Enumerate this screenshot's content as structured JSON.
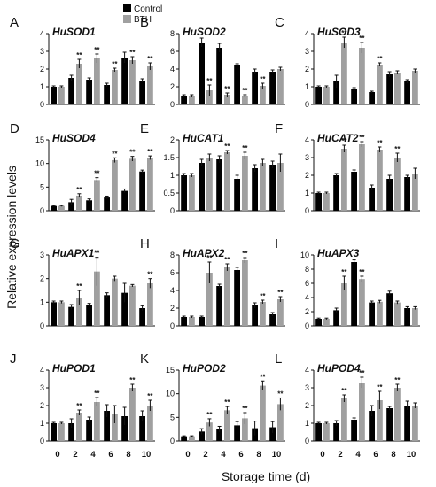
{
  "figure": {
    "ylabel": "Relative expression levels",
    "xlabel": "Storage time (d)",
    "legend": {
      "placement": "top",
      "entries": [
        {
          "name": "Control",
          "color": "#000000"
        },
        {
          "name": "BTH",
          "color": "#a0a0a0"
        }
      ]
    },
    "colors": {
      "control": "#000000",
      "bth": "#a0a0a0"
    }
  },
  "chart_data": [
    {
      "type": "bar",
      "panel": "A",
      "gene": "HuSOD1",
      "categories": [
        "0",
        "2",
        "4",
        "6",
        "8",
        "10"
      ],
      "yticks": [
        0,
        1,
        2,
        3,
        4
      ],
      "ylim": [
        0,
        4
      ],
      "series": [
        {
          "name": "Control",
          "values": [
            1.0,
            1.5,
            1.4,
            1.1,
            2.65,
            1.35
          ],
          "errors": [
            0.05,
            0.15,
            0.1,
            0.1,
            0.3,
            0.1
          ]
        },
        {
          "name": "BTH",
          "values": [
            1.0,
            2.3,
            2.6,
            1.95,
            2.5,
            2.15
          ],
          "errors": [
            0.05,
            0.25,
            0.25,
            0.1,
            0.2,
            0.2
          ]
        }
      ],
      "significance": [
        "",
        "**",
        "**",
        "**",
        "**",
        "**"
      ]
    },
    {
      "type": "bar",
      "panel": "B",
      "gene": "HuSOD2",
      "categories": [
        "0",
        "2",
        "4",
        "6",
        "8",
        "10"
      ],
      "yticks": [
        0,
        2,
        4,
        6,
        8
      ],
      "ylim": [
        0,
        8
      ],
      "series": [
        {
          "name": "Control",
          "values": [
            1.0,
            7.0,
            6.4,
            4.5,
            3.7,
            3.7
          ],
          "errors": [
            0.1,
            0.5,
            0.5,
            0.1,
            0.3,
            0.2
          ]
        },
        {
          "name": "BTH",
          "values": [
            1.0,
            1.6,
            1.1,
            1.0,
            2.1,
            4.0
          ],
          "errors": [
            0.1,
            0.6,
            0.2,
            0.1,
            0.3,
            0.2
          ]
        }
      ],
      "significance": [
        "",
        "**",
        "**",
        "**",
        "**",
        ""
      ]
    },
    {
      "type": "bar",
      "panel": "C",
      "gene": "HuSOD3",
      "categories": [
        "0",
        "2",
        "4",
        "6",
        "8",
        "10"
      ],
      "yticks": [
        0,
        1,
        2,
        3,
        4
      ],
      "ylim": [
        0,
        4
      ],
      "series": [
        {
          "name": "Control",
          "values": [
            1.0,
            1.3,
            0.85,
            0.7,
            1.7,
            1.3
          ],
          "errors": [
            0.05,
            0.35,
            0.1,
            0.05,
            0.15,
            0.1
          ]
        },
        {
          "name": "BTH",
          "values": [
            1.0,
            3.5,
            3.2,
            2.25,
            1.8,
            1.9
          ],
          "errors": [
            0.05,
            0.3,
            0.3,
            0.1,
            0.1,
            0.1
          ]
        }
      ],
      "significance": [
        "",
        "**",
        "**",
        "**",
        "",
        ""
      ]
    },
    {
      "type": "bar",
      "panel": "D",
      "gene": "HuSOD4",
      "categories": [
        "0",
        "2",
        "4",
        "6",
        "8",
        "10"
      ],
      "yticks": [
        0,
        5,
        10,
        15
      ],
      "ylim": [
        0,
        15
      ],
      "series": [
        {
          "name": "Control",
          "values": [
            1.0,
            1.8,
            2.2,
            2.8,
            4.2,
            8.3
          ],
          "errors": [
            0.1,
            0.6,
            0.3,
            0.3,
            0.4,
            0.3
          ]
        },
        {
          "name": "BTH",
          "values": [
            1.0,
            3.2,
            6.5,
            10.7,
            11.0,
            11.2
          ],
          "errors": [
            0.1,
            0.4,
            0.5,
            0.5,
            0.5,
            0.4
          ]
        }
      ],
      "significance": [
        "",
        "**",
        "**",
        "**",
        "**",
        "**"
      ]
    },
    {
      "type": "bar",
      "panel": "E",
      "gene": "HuCAT1",
      "categories": [
        "0",
        "2",
        "4",
        "6",
        "8",
        "10"
      ],
      "yticks": [
        0.0,
        0.5,
        1.0,
        1.5,
        2.0
      ],
      "ylim": [
        0,
        2
      ],
      "series": [
        {
          "name": "Control",
          "values": [
            1.0,
            1.35,
            1.45,
            0.9,
            1.2,
            1.3
          ],
          "errors": [
            0.05,
            0.1,
            0.1,
            0.1,
            0.1,
            0.1
          ]
        },
        {
          "name": "BTH",
          "values": [
            1.0,
            1.5,
            1.65,
            1.55,
            1.35,
            1.35
          ],
          "errors": [
            0.05,
            0.1,
            0.05,
            0.1,
            0.1,
            0.25
          ]
        }
      ],
      "significance": [
        "",
        "",
        "**",
        "**",
        "",
        ""
      ]
    },
    {
      "type": "bar",
      "panel": "F",
      "gene": "HuCAT2",
      "categories": [
        "0",
        "2",
        "4",
        "6",
        "8",
        "10"
      ],
      "yticks": [
        0,
        1,
        2,
        3,
        4
      ],
      "ylim": [
        0,
        4
      ],
      "series": [
        {
          "name": "Control",
          "values": [
            1.0,
            2.0,
            2.2,
            1.3,
            1.8,
            1.9
          ],
          "errors": [
            0.05,
            0.1,
            0.1,
            0.15,
            0.2,
            0.1
          ]
        },
        {
          "name": "BTH",
          "values": [
            1.0,
            3.5,
            3.75,
            3.45,
            3.0,
            2.1
          ],
          "errors": [
            0.05,
            0.2,
            0.15,
            0.15,
            0.25,
            0.3
          ]
        }
      ],
      "significance": [
        "",
        "**",
        "**",
        "**",
        "**",
        ""
      ]
    },
    {
      "type": "bar",
      "panel": "G",
      "gene": "HuAPX1",
      "categories": [
        "0",
        "2",
        "4",
        "6",
        "8",
        "10"
      ],
      "yticks": [
        0,
        1,
        2,
        3
      ],
      "ylim": [
        0,
        3
      ],
      "series": [
        {
          "name": "Control",
          "values": [
            1.0,
            0.8,
            0.9,
            1.3,
            1.4,
            0.75
          ],
          "errors": [
            0.05,
            0.1,
            0.05,
            0.1,
            0.4,
            0.1
          ]
        },
        {
          "name": "BTH",
          "values": [
            1.0,
            1.2,
            2.3,
            2.0,
            1.7,
            1.8
          ],
          "errors": [
            0.05,
            0.3,
            0.6,
            0.1,
            0.05,
            0.2
          ]
        }
      ],
      "significance": [
        "",
        "**",
        "**",
        "",
        "",
        "**"
      ]
    },
    {
      "type": "bar",
      "panel": "H",
      "gene": "HuAPX2",
      "categories": [
        "0",
        "2",
        "4",
        "6",
        "8",
        "10"
      ],
      "yticks": [
        0,
        2,
        4,
        6,
        8
      ],
      "ylim": [
        0,
        8
      ],
      "series": [
        {
          "name": "Control",
          "values": [
            1.0,
            1.0,
            4.5,
            6.3,
            2.3,
            1.3
          ],
          "errors": [
            0.1,
            0.1,
            0.2,
            0.3,
            0.3,
            0.2
          ]
        },
        {
          "name": "BTH",
          "values": [
            1.0,
            6.0,
            6.6,
            7.4,
            2.7,
            3.0
          ],
          "errors": [
            0.1,
            1.2,
            0.4,
            0.3,
            0.2,
            0.3
          ]
        }
      ],
      "significance": [
        "",
        "**",
        "**",
        "**",
        "**",
        "**"
      ]
    },
    {
      "type": "bar",
      "panel": "I",
      "gene": "HuAPX3",
      "categories": [
        "0",
        "2",
        "4",
        "6",
        "8",
        "10"
      ],
      "yticks": [
        0,
        2,
        4,
        6,
        8,
        10
      ],
      "ylim": [
        0,
        10
      ],
      "series": [
        {
          "name": "Control",
          "values": [
            1.0,
            2.2,
            9.0,
            3.3,
            4.6,
            2.5
          ],
          "errors": [
            0.1,
            0.3,
            0.3,
            0.2,
            0.3,
            0.2
          ]
        },
        {
          "name": "BTH",
          "values": [
            1.0,
            6.0,
            6.6,
            3.4,
            3.3,
            2.5
          ],
          "errors": [
            0.1,
            1.0,
            0.4,
            0.2,
            0.2,
            0.2
          ]
        }
      ],
      "significance": [
        "",
        "**",
        "**",
        "",
        "",
        ""
      ]
    },
    {
      "type": "bar",
      "panel": "J",
      "gene": "HuPOD1",
      "categories": [
        "0",
        "2",
        "4",
        "6",
        "8",
        "10"
      ],
      "yticks": [
        0,
        1,
        2,
        3,
        4
      ],
      "ylim": [
        0,
        4
      ],
      "series": [
        {
          "name": "Control",
          "values": [
            1.0,
            1.0,
            1.2,
            1.7,
            1.4,
            1.4
          ],
          "errors": [
            0.05,
            0.25,
            0.15,
            0.35,
            0.5,
            0.3
          ]
        },
        {
          "name": "BTH",
          "values": [
            1.0,
            1.6,
            2.2,
            1.5,
            3.0,
            2.0
          ],
          "errors": [
            0.05,
            0.15,
            0.25,
            0.5,
            0.2,
            0.3
          ]
        }
      ],
      "significance": [
        "",
        "**",
        "**",
        "",
        "**",
        "**"
      ]
    },
    {
      "type": "bar",
      "panel": "K",
      "gene": "HuPOD2",
      "categories": [
        "0",
        "2",
        "4",
        "6",
        "8",
        "10"
      ],
      "yticks": [
        0,
        5,
        10,
        15
      ],
      "ylim": [
        0,
        15
      ],
      "series": [
        {
          "name": "Control",
          "values": [
            1.0,
            2.0,
            2.5,
            3.3,
            2.7,
            2.9
          ],
          "errors": [
            0.1,
            0.6,
            0.6,
            0.8,
            1.5,
            1.2
          ]
        },
        {
          "name": "BTH",
          "values": [
            1.0,
            3.9,
            6.5,
            4.8,
            11.7,
            7.8
          ],
          "errors": [
            0.1,
            0.8,
            0.8,
            1.2,
            1.0,
            1.3
          ]
        }
      ],
      "significance": [
        "",
        "**",
        "**",
        "**",
        "**",
        "**"
      ]
    },
    {
      "type": "bar",
      "panel": "L",
      "gene": "HuPOD4",
      "categories": [
        "0",
        "2",
        "4",
        "6",
        "8",
        "10"
      ],
      "yticks": [
        0,
        1,
        2,
        3,
        4
      ],
      "ylim": [
        0,
        4
      ],
      "series": [
        {
          "name": "Control",
          "values": [
            1.0,
            1.0,
            1.2,
            1.7,
            1.85,
            2.0
          ],
          "errors": [
            0.05,
            0.15,
            0.1,
            0.3,
            0.1,
            0.25
          ]
        },
        {
          "name": "BTH",
          "values": [
            1.0,
            2.4,
            3.3,
            2.3,
            3.0,
            2.0
          ],
          "errors": [
            0.05,
            0.2,
            0.3,
            0.5,
            0.2,
            0.15
          ]
        }
      ],
      "significance": [
        "",
        "**",
        "**",
        "**",
        "**",
        ""
      ]
    }
  ]
}
